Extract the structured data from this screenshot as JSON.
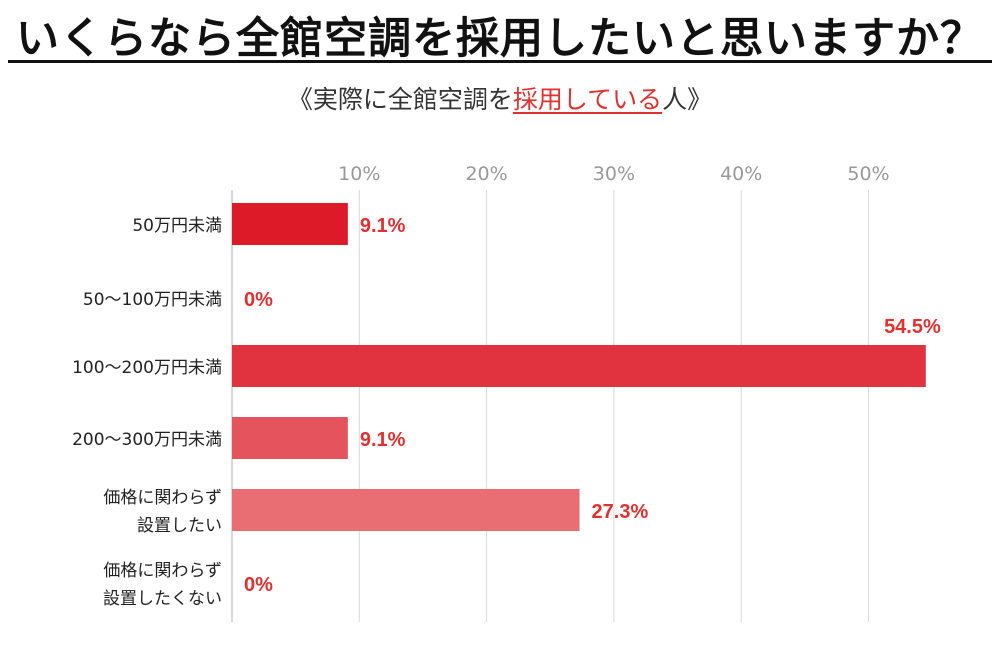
{
  "title": "いくらなら全館空調を採用したいと思いますか？",
  "subtitle": {
    "prefix": "《実際に全館空調を",
    "highlight": "採用している",
    "suffix": "人》"
  },
  "colors": {
    "accent": "#e03030",
    "grid": "#d9d9d9",
    "tick": "#999999",
    "category": "#222222"
  },
  "chart_data": {
    "type": "bar",
    "orientation": "horizontal",
    "categories": [
      [
        "50万円未満"
      ],
      [
        "50〜100万円未満"
      ],
      [
        "100〜200万円未満"
      ],
      [
        "200〜300万円未満"
      ],
      [
        "価格に関わらず",
        "設置したい"
      ],
      [
        "価格に関わらず",
        "設置したくない"
      ]
    ],
    "values": [
      9.1,
      0,
      54.5,
      9.1,
      27.3,
      0
    ],
    "value_labels": [
      "9.1%",
      "0%",
      "54.5%",
      "9.1%",
      "27.3%",
      "0%"
    ],
    "bar_colors": [
      "#dd1a28",
      "#dd1a28",
      "#e0323f",
      "#e5535c",
      "#e86e74",
      "#e86e74"
    ],
    "xticks": [
      "10%",
      "20%",
      "30%",
      "40%",
      "50%"
    ],
    "xtick_values": [
      10,
      20,
      30,
      40,
      50
    ],
    "xlim": [
      0,
      55
    ],
    "grid": true,
    "legend": "none"
  }
}
